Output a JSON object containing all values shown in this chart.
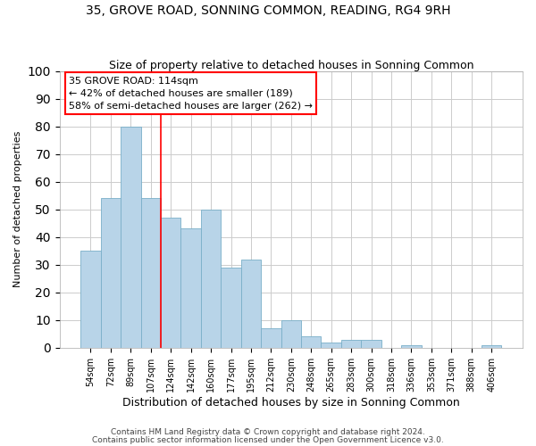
{
  "title": "35, GROVE ROAD, SONNING COMMON, READING, RG4 9RH",
  "subtitle": "Size of property relative to detached houses in Sonning Common",
  "xlabel": "Distribution of detached houses by size in Sonning Common",
  "ylabel": "Number of detached properties",
  "bar_labels": [
    "54sqm",
    "72sqm",
    "89sqm",
    "107sqm",
    "124sqm",
    "142sqm",
    "160sqm",
    "177sqm",
    "195sqm",
    "212sqm",
    "230sqm",
    "248sqm",
    "265sqm",
    "283sqm",
    "300sqm",
    "318sqm",
    "336sqm",
    "353sqm",
    "371sqm",
    "388sqm",
    "406sqm"
  ],
  "bar_heights": [
    35,
    54,
    80,
    54,
    47,
    43,
    50,
    29,
    32,
    7,
    10,
    4,
    2,
    3,
    3,
    0,
    1,
    0,
    0,
    0,
    1
  ],
  "bar_color": "#b8d4e8",
  "bar_edge_color": "#7aafc8",
  "annotation_box_text": "35 GROVE ROAD: 114sqm\n← 42% of detached houses are smaller (189)\n58% of semi-detached houses are larger (262) →",
  "red_line_x": 3.5,
  "ylim": [
    0,
    100
  ],
  "grid_color": "#cccccc",
  "background_color": "#ffffff",
  "footer_line1": "Contains HM Land Registry data © Crown copyright and database right 2024.",
  "footer_line2": "Contains public sector information licensed under the Open Government Licence v3.0.",
  "title_fontsize": 10,
  "subtitle_fontsize": 9,
  "xlabel_fontsize": 9,
  "ylabel_fontsize": 8,
  "tick_fontsize": 7,
  "annotation_fontsize": 8,
  "footer_fontsize": 6.5
}
